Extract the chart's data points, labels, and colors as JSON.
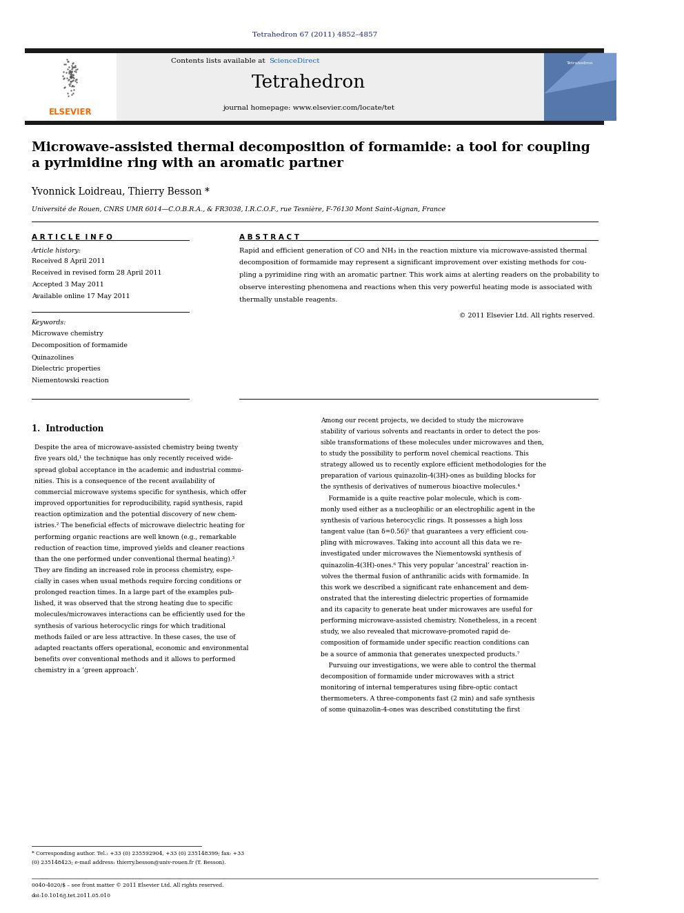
{
  "page_width": 9.92,
  "page_height": 13.23,
  "dpi": 100,
  "bg_color": "#ffffff",
  "header_citation": "Tetrahedron 67 (2011) 4852–4857",
  "header_citation_color": "#1a237e",
  "journal_name": "Tetrahedron",
  "journal_homepage": "journal homepage: www.elsevier.com/locate/tet",
  "contents_text": "Contents lists available at ",
  "sciencedirect_text": "ScienceDirect",
  "sciencedirect_color": "#1565c0",
  "header_bg": "#eeeeee",
  "header_bar_color": "#1a1a1a",
  "elsevier_color": "#ff6600",
  "article_title": "Microwave-assisted thermal decomposition of formamide: a tool for coupling\na pyrimidine ring with an aromatic partner",
  "authors": "Yvonnick Loidreau, Thierry Besson *",
  "affiliation": "Université de Rouen, CNRS UMR 6014—C.O.B.R.A., & FR3038, I.R.C.O.F., rue Tesnière, F-76130 Mont Saint-Aignan, France",
  "article_info_label": "A R T I C L E  I N F O",
  "abstract_label": "A B S T R A C T",
  "article_history_label": "Article history:",
  "article_history": "Received 8 April 2011\nReceived in revised form 28 April 2011\nAccepted 3 May 2011\nAvailable online 17 May 2011",
  "keywords_label": "Keywords:",
  "keywords": "Microwave chemistry\nDecomposition of formamide\nQuinazolines\nDielectric properties\nNiementowski reaction",
  "abstract_text": "Rapid and efficient generation of CO and NH₃ in the reaction mixture via microwave-assisted thermal\ndecomposition of formamide may represent a significant improvement over existing methods for cou-\npling a pyrimidine ring with an aromatic partner. This work aims at alerting readers on the probability to\nobserve interesting phenomena and reactions when this very powerful heating mode is associated with\nthermally unstable reagents.",
  "copyright_text": "© 2011 Elsevier Ltd. All rights reserved.",
  "intro_heading": "1.  Introduction",
  "intro_left": "Despite the area of microwave-assisted chemistry being twenty\nfive years old,¹ the technique has only recently received wide-\nspread global acceptance in the academic and industrial commu-\nnities. This is a consequence of the recent availability of\ncommercial microwave systems specific for synthesis, which offer\nimproved opportunities for reproducibility, rapid synthesis, rapid\nreaction optimization and the potential discovery of new chem-\nistries.² The beneficial effects of microwave dielectric heating for\nperforming organic reactions are well known (e.g., remarkable\nreduction of reaction time, improved yields and cleaner reactions\nthan the one performed under conventional thermal heating).³\nThey are finding an increased role in process chemistry, espe-\ncially in cases when usual methods require forcing conditions or\nprolonged reaction times. In a large part of the examples pub-\nlished, it was observed that the strong heating due to specific\nmolecules/microwaves interactions can be efficiently used for the\nsynthesis of various heterocyclic rings for which traditional\nmethods failed or are less attractive. In these cases, the use of\nadapted reactants offers operational, economic and environmental\nbenefits over conventional methods and it allows to performed\nchemistry in a ‘green approach’.",
  "intro_right": "Among our recent projects, we decided to study the microwave\nstability of various solvents and reactants in order to detect the pos-\nsible transformations of these molecules under microwaves and then,\nto study the possibility to perform novel chemical reactions. This\nstrategy allowed us to recently explore efficient methodologies for the\npreparation of various quinazolin-4(3H)-ones as building blocks for\nthe synthesis of derivatives of numerous bioactive molecules.⁴\n    Formamide is a quite reactive polar molecule, which is com-\nmonly used either as a nucleophilic or an electrophilic agent in the\nsynthesis of various heterocyclic rings. It possesses a high loss\ntangent value (tan δ=0.56)⁵ that guarantees a very efficient cou-\npling with microwaves. Taking into account all this data we re-\ninvestigated under microwaves the Niementowski synthesis of\nquinazolin-4(3H)-ones.⁶ This very popular ‘ancestral’ reaction in-\nvolves the thermal fusion of anthranilic acids with formamide. In\nthis work we described a significant rate enhancement and dem-\nonstrated that the interesting dielectric properties of formamide\nand its capacity to generate heat under microwaves are useful for\nperforming microwave-assisted chemistry. Nonetheless, in a recent\nstudy, we also revealed that microwave-promoted rapid de-\ncomposition of formamide under specific reaction conditions can\nbe a source of ammonia that generates unexpected products.⁷\n    Pursuing our investigations, we were able to control the thermal\ndecomposition of formamide under microwaves with a strict\nmonitoring of internal temperatures using fibre-optic contact\nthermometers. A three-components fast (2 min) and safe synthesis\nof some quinazolin-4-ones was described constituting the first",
  "footnote_line1": "* Corresponding author. Tel.: +33 (0) 235592904, +33 (0) 235148399; fax: +33",
  "footnote_line2": "(0) 235148423; e-mail address: thierry.besson@univ-rouen.fr (T. Besson).",
  "footer_line1": "0040-4020/$ – see front matter © 2011 Elsevier Ltd. All rights reserved.",
  "footer_line2": "doi:10.1016/j.tet.2011.05.010",
  "separator_color": "#1a1a1a",
  "text_color": "#000000"
}
